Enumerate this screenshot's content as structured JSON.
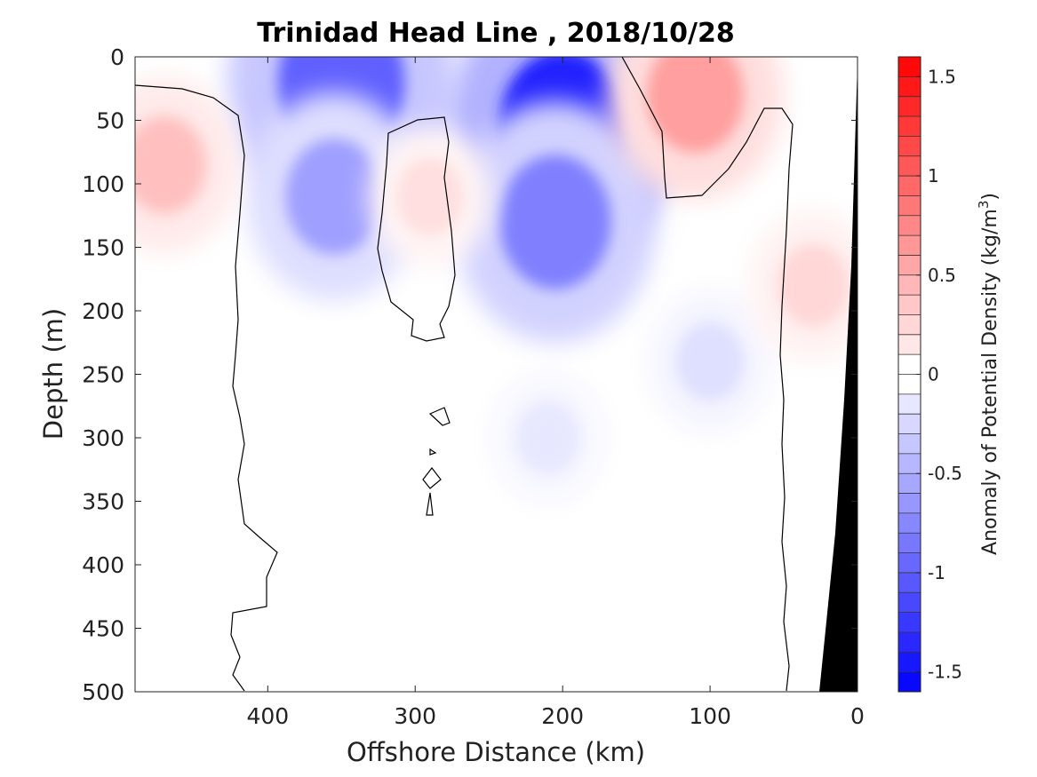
{
  "colors": {
    "positive": "#ff0000",
    "negative": "#0000ff",
    "zero": "#ffffff",
    "land": "#000000",
    "contour": "#000000"
  },
  "chart_data": {
    "type": "heatmap",
    "title": "Trinidad Head Line , 2018/10/28",
    "xlabel": "Offshore Distance (km)",
    "ylabel": "Depth (m)",
    "xlim": [
      490,
      0
    ],
    "ylim": [
      0,
      500
    ],
    "x_ticks": [
      400,
      300,
      200,
      100,
      0
    ],
    "y_ticks": [
      0,
      50,
      100,
      150,
      200,
      250,
      300,
      350,
      400,
      450,
      500
    ],
    "colorbar": {
      "label": "Anomaly of Potential Density (kg/m",
      "label_sup": "3",
      "label_close": ")",
      "range": [
        -1.6,
        1.6
      ],
      "level_step": 0.1,
      "ticks": [
        -1.5,
        -1,
        -0.5,
        0,
        0.5,
        1,
        1.5
      ],
      "tick_labels": [
        "-1.5",
        "-1",
        "-0.5",
        "0",
        "0.5",
        "1",
        "1.5"
      ],
      "colormap": "blue-white-red"
    },
    "features": [
      {
        "x_km": 350,
        "depth_m": 20,
        "anomaly": -1.0
      },
      {
        "x_km": 355,
        "depth_m": 110,
        "anomaly": -0.6
      },
      {
        "x_km": 200,
        "depth_m": 55,
        "anomaly": -1.4
      },
      {
        "x_km": 205,
        "depth_m": 130,
        "anomaly": -0.8
      },
      {
        "x_km": 210,
        "depth_m": 300,
        "anomaly": -0.15
      },
      {
        "x_km": 100,
        "depth_m": 240,
        "anomaly": -0.2
      },
      {
        "x_km": 470,
        "depth_m": 85,
        "anomaly": 0.4
      },
      {
        "x_km": 290,
        "depth_m": 110,
        "anomaly": 0.2
      },
      {
        "x_km": 110,
        "depth_m": 30,
        "anomaly": 0.6
      },
      {
        "x_km": 30,
        "depth_m": 180,
        "anomaly": 0.25
      }
    ]
  }
}
